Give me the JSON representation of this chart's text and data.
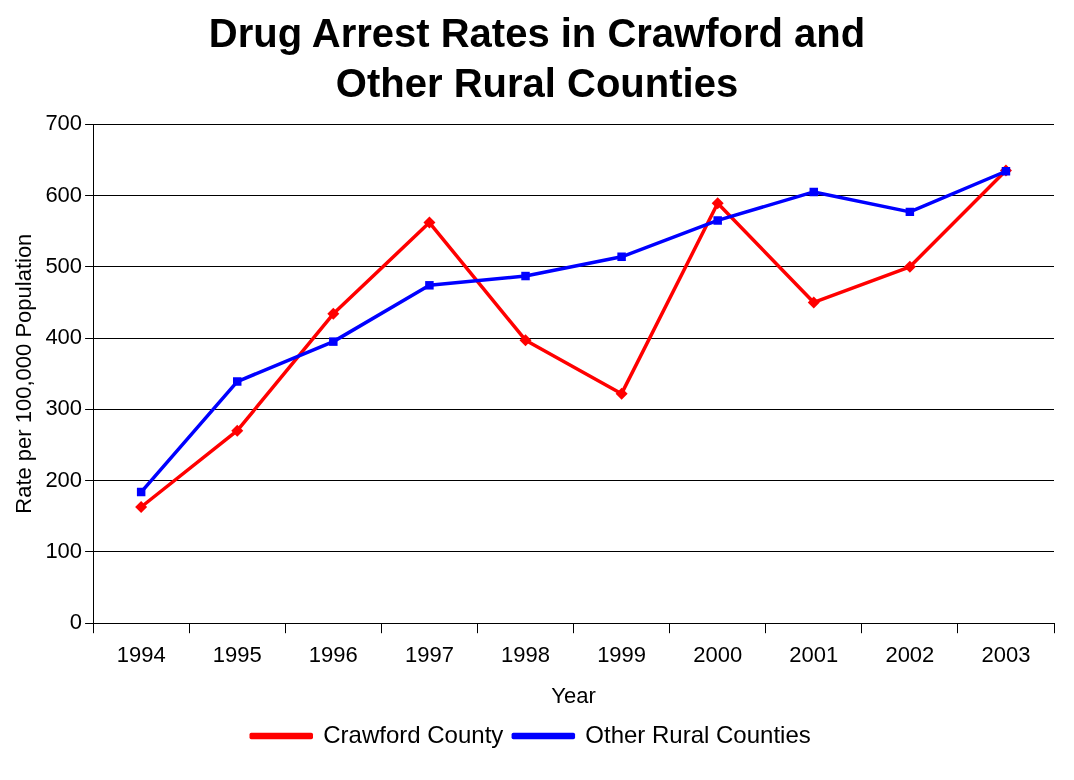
{
  "chart_data": {
    "type": "line",
    "title": "Drug Arrest Rates in Crawford and Other Rural Counties",
    "xlabel": "Year",
    "ylabel": "Rate per 100,000 Population",
    "categories": [
      "1994",
      "1995",
      "1996",
      "1997",
      "1998",
      "1999",
      "2000",
      "2001",
      "2002",
      "2003"
    ],
    "series": [
      {
        "name": "Crawford County",
        "color": "#ff0000",
        "marker": "diamond",
        "values": [
          163,
          270,
          434,
          562,
          397,
          322,
          589,
          450,
          500,
          635
        ]
      },
      {
        "name": "Other Rural Counties",
        "color": "#0000ff",
        "marker": "square",
        "values": [
          184,
          339,
          395,
          474,
          487,
          514,
          565,
          605,
          577,
          634
        ]
      }
    ],
    "ylim": [
      0,
      700
    ],
    "yticks": [
      0,
      100,
      200,
      300,
      400,
      500,
      600,
      700
    ],
    "grid": "y",
    "legend": "bottom",
    "line_style": "solid"
  }
}
